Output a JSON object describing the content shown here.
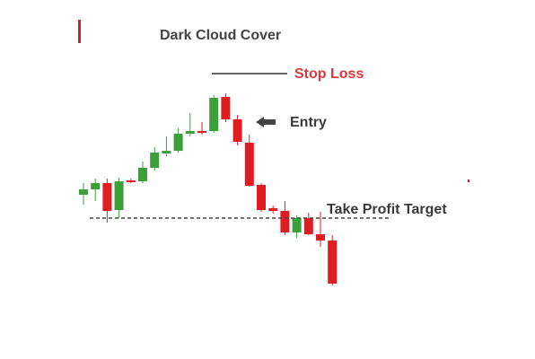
{
  "chart_data": {
    "type": "candlestick",
    "title": "Dark Cloud Cover",
    "ylim": [
      60,
      300
    ],
    "up_color": "#3c9f3c",
    "down_color": "#e01e22",
    "open": [
      183,
      189,
      196,
      166,
      199,
      198,
      213,
      229,
      232,
      251,
      254,
      254,
      292,
      267,
      241,
      194,
      168,
      165,
      141,
      157,
      139,
      132
    ],
    "high": [
      196,
      201,
      201,
      202,
      201,
      220,
      236,
      248,
      257,
      274,
      264,
      294,
      296,
      272,
      250,
      196,
      171,
      176,
      160,
      163,
      164,
      138
    ],
    "low": [
      172,
      176,
      152,
      157,
      196,
      196,
      210,
      226,
      230,
      248,
      250,
      252,
      264,
      238,
      192,
      164,
      162,
      138,
      135,
      138,
      125,
      82
    ],
    "close": [
      189,
      196,
      165,
      198,
      197,
      213,
      230,
      232,
      251,
      254,
      252,
      291,
      267,
      242,
      193,
      166,
      165,
      141,
      157,
      139,
      132,
      84
    ],
    "annotations": [
      {
        "text": "Stop Loss",
        "value": 318,
        "color": "#d9383d"
      },
      {
        "text": "Entry",
        "value": 264,
        "color": "#3a3a3a"
      },
      {
        "text": "Take Profit Target",
        "value": 157,
        "color": "#3a3a3a"
      }
    ]
  }
}
